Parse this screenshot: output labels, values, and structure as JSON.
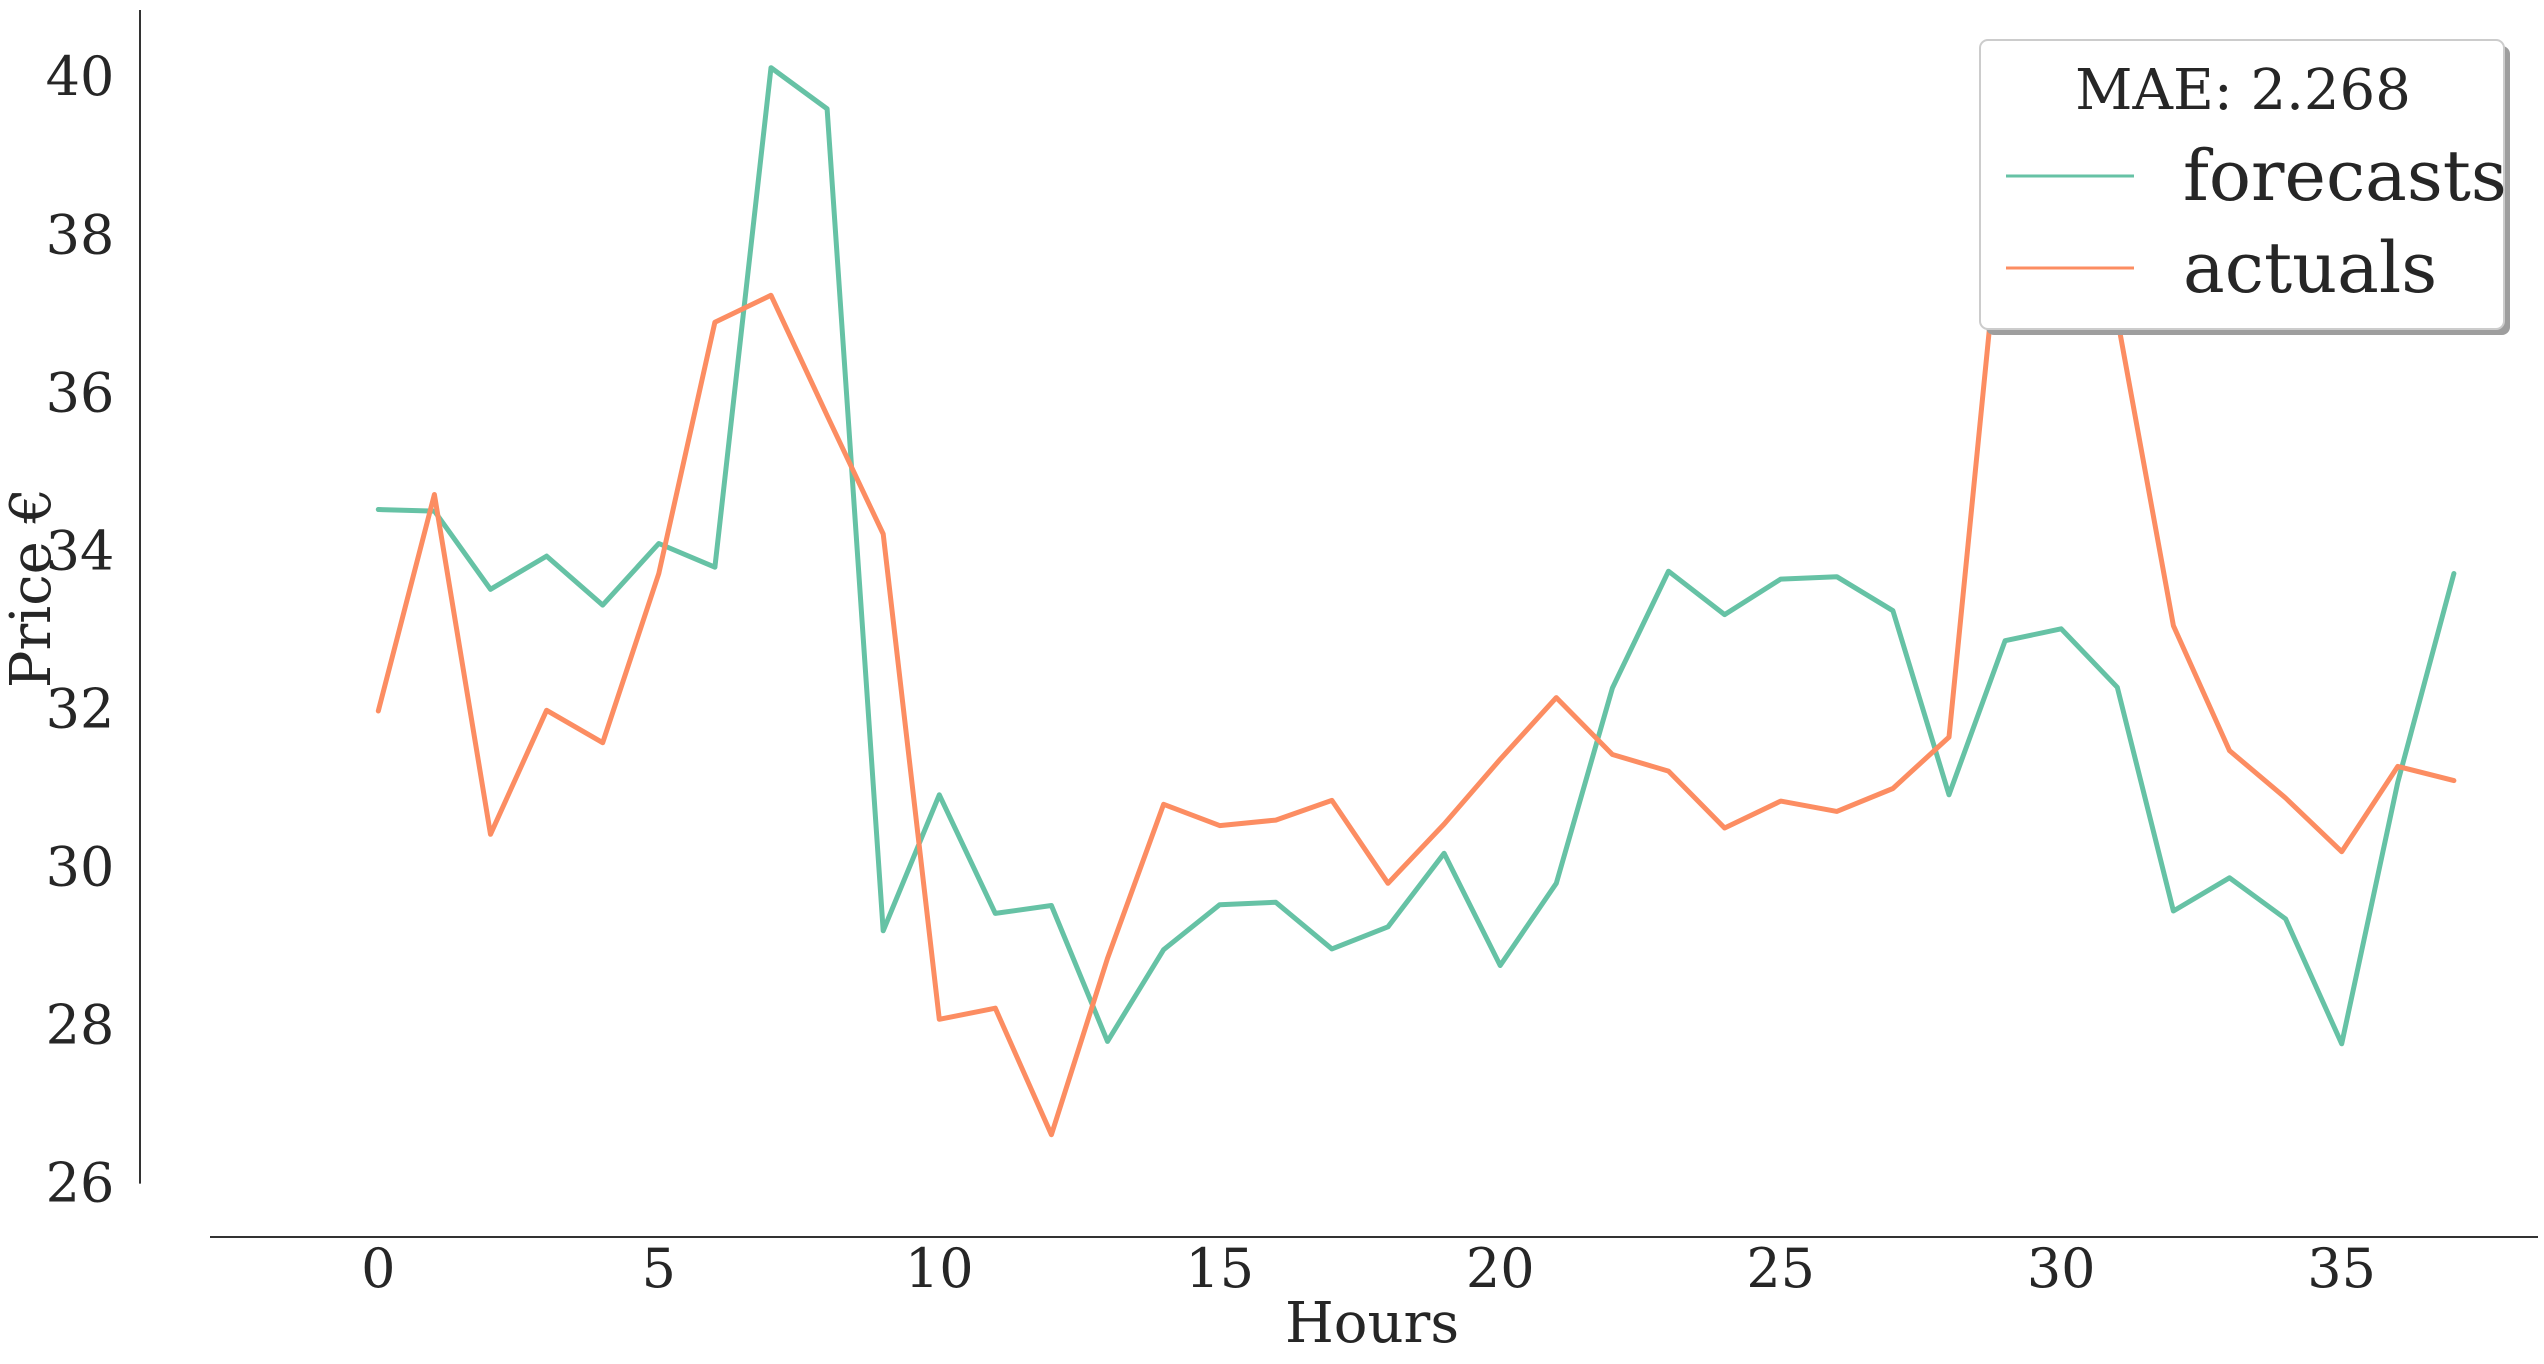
{
  "chart_data": {
    "type": "line",
    "xlabel": "Hours",
    "ylabel": "Price €",
    "xlim": [
      -3,
      38.5
    ],
    "ylim": [
      25.3,
      40.85
    ],
    "xticks": [
      0,
      5,
      10,
      15,
      20,
      25,
      30,
      35
    ],
    "yticks": [
      26,
      28,
      30,
      32,
      34,
      36,
      38,
      40
    ],
    "grid": false,
    "legend": {
      "title": "MAE: 2.268",
      "placement": "top-right",
      "entries": [
        "forecasts",
        "actuals"
      ]
    },
    "x": [
      0,
      1,
      2,
      3,
      4,
      5,
      6,
      7,
      8,
      9,
      10,
      11,
      12,
      13,
      14,
      15,
      16,
      17,
      18,
      19,
      20,
      21,
      22,
      23,
      24,
      25,
      26,
      27,
      28,
      29,
      30,
      31,
      32,
      33,
      34,
      35,
      36,
      37
    ],
    "series": [
      {
        "name": "forecasts",
        "color": "#66c2a5",
        "values": [
          34.53,
          34.51,
          33.52,
          33.94,
          33.32,
          34.1,
          33.8,
          40.12,
          39.6,
          29.2,
          30.92,
          29.42,
          29.52,
          27.8,
          28.96,
          29.53,
          29.56,
          28.97,
          29.25,
          30.18,
          28.76,
          29.8,
          32.27,
          33.75,
          33.2,
          33.65,
          33.68,
          33.25,
          30.92,
          32.87,
          33.02,
          32.28,
          29.45,
          29.87,
          29.35,
          27.77,
          31.08,
          33.72
        ]
      },
      {
        "name": "actuals",
        "color": "#fc8d62",
        "values": [
          31.98,
          34.72,
          30.42,
          31.99,
          31.58,
          33.72,
          36.9,
          37.24,
          35.72,
          34.22,
          28.08,
          28.22,
          26.62,
          28.85,
          30.8,
          30.53,
          30.6,
          30.85,
          29.8,
          30.55,
          31.37,
          32.15,
          31.43,
          31.22,
          30.5,
          30.84,
          30.71,
          31.0,
          31.65,
          38.82,
          37.55,
          36.95,
          33.06,
          31.48,
          30.88,
          30.2,
          31.28,
          31.1
        ]
      }
    ]
  }
}
